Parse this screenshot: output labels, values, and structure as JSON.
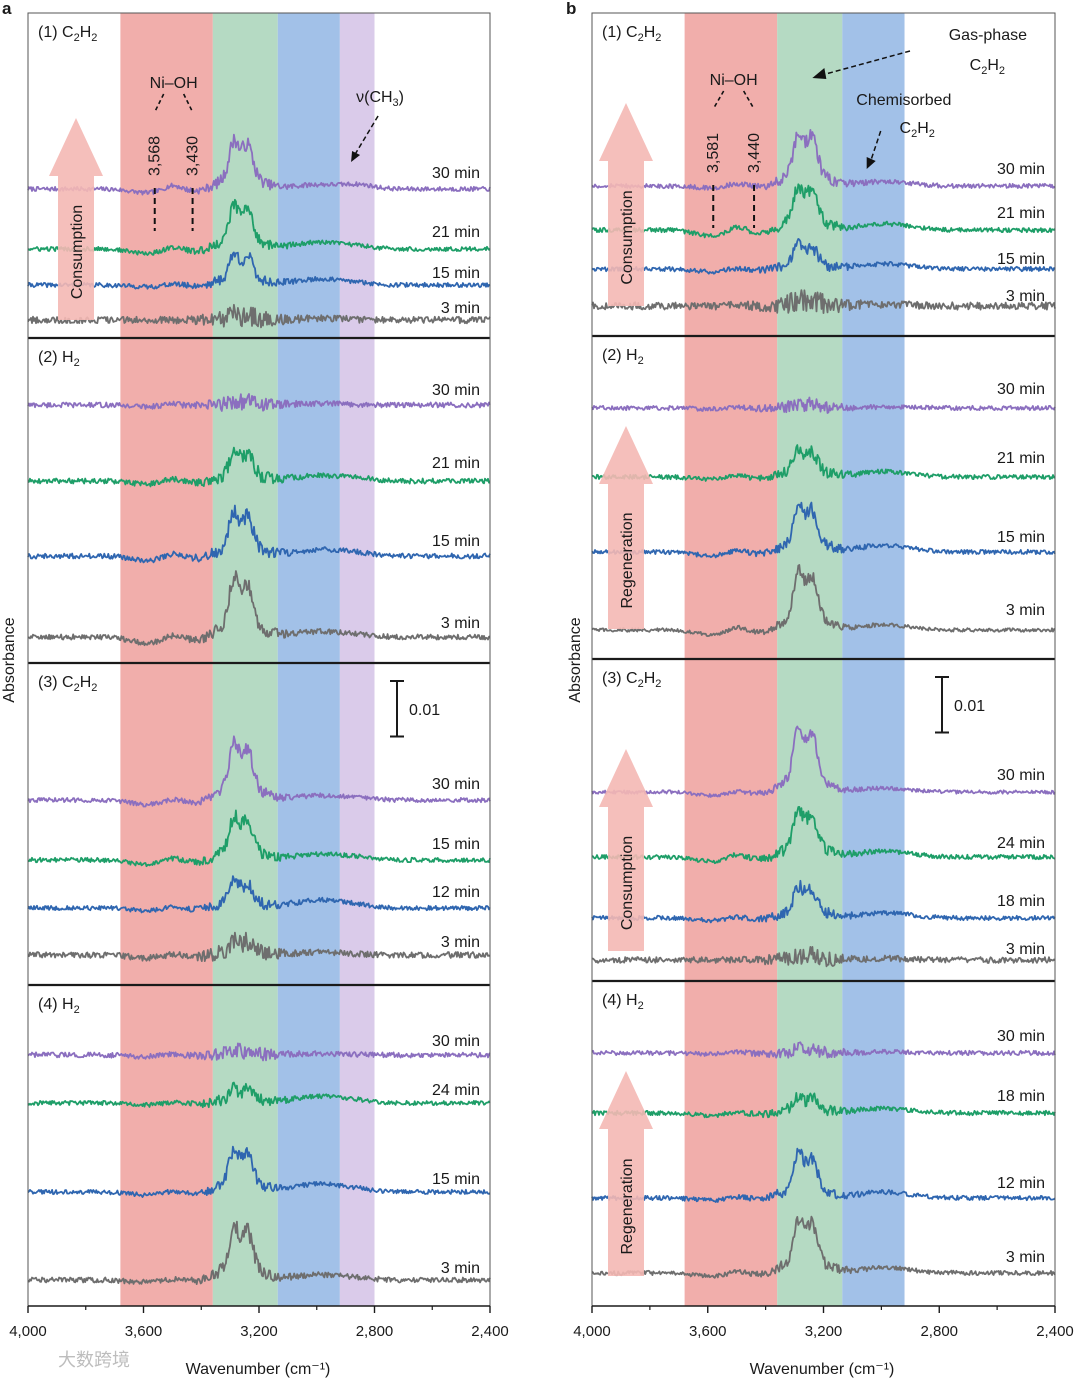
{
  "chart_data": [
    {
      "panel": "a",
      "type": "line",
      "xlabel": "Wavenumber (cm⁻¹)",
      "ylabel": "Absorbance",
      "xlim": [
        4000,
        2400
      ],
      "x_ticks": [
        4000,
        3600,
        3200,
        2800,
        2400
      ],
      "x_tick_labels": [
        "4,000",
        "3,600",
        "3,200",
        "2,800",
        "2,400"
      ],
      "bands": [
        {
          "name": "Ni-OH region",
          "from": 3680,
          "to": 3360,
          "color": "#eea09c"
        },
        {
          "name": "gas-phase C2H2",
          "from": 3360,
          "to": 3135,
          "color": "#a8d4b8"
        },
        {
          "name": "chemisorbed C2H2",
          "from": 3135,
          "to": 2920,
          "color": "#92b6e4"
        },
        {
          "name": "v(CH3)",
          "from": 2920,
          "to": 2800,
          "color": "#d4c2e6"
        }
      ],
      "sections": [
        {
          "label_main": "(1) C",
          "label_sub": "2",
          "label_tail": "H",
          "label_sub2": "2",
          "label_end": "",
          "arrow": "Consumption",
          "traces": [
            {
              "time": "30 min",
              "color": "#8b6fbf",
              "baseline": 0.011,
              "oh": [
                0.0012,
                -0.001
              ],
              "gas": 0.0095,
              "chem": 0.0012,
              "ch3": 0.0009,
              "noise": 0.0006
            },
            {
              "time": "21 min",
              "color": "#1e9e68",
              "baseline": 0.0065,
              "oh": [
                0.0008,
                -0.0012
              ],
              "gas": 0.0085,
              "chem": 0.0018,
              "ch3": 0.0005,
              "noise": 0.0006
            },
            {
              "time": "15 min",
              "color": "#2f66b0",
              "baseline": 0.0035,
              "oh": [
                0.0004,
                -0.0005
              ],
              "gas": 0.006,
              "chem": 0.0016,
              "ch3": 0.0003,
              "noise": 0.0006
            },
            {
              "time": "3 min",
              "color": "#6e6e6e",
              "baseline": 0.0,
              "oh": [
                0.0,
                0.0
              ],
              "gas": 0.001,
              "chem": 0.0004,
              "ch3": 0.0,
              "noise": 0.0009
            }
          ],
          "annotations": {
            "ni_oh": "Ni–OH",
            "peak1": "3,568",
            "peak2": "3,430",
            "ch3_pre": "ν(CH",
            "ch3_sub": "3",
            "ch3_post": ")"
          }
        },
        {
          "label_main": "(2) H",
          "label_sub": "2",
          "label_tail": "",
          "label_sub2": "",
          "label_end": "",
          "arrow": "",
          "traces": [
            {
              "time": "30 min",
              "color": "#8b6fbf",
              "baseline": 0.0245,
              "oh": [
                0.0004,
                -0.0004
              ],
              "gas": 0.0008,
              "chem": 0.0004,
              "ch3": 0.0,
              "noise": 0.0007
            },
            {
              "time": "21 min",
              "color": "#1e9e68",
              "baseline": 0.0165,
              "oh": [
                0.0008,
                -0.0008
              ],
              "gas": 0.0055,
              "chem": 0.0015,
              "ch3": 0.0005,
              "noise": 0.0007
            },
            {
              "time": "15 min",
              "color": "#2f66b0",
              "baseline": 0.0085,
              "oh": [
                0.0009,
                -0.0012
              ],
              "gas": 0.0085,
              "chem": 0.0018,
              "ch3": 0.0005,
              "noise": 0.0007
            },
            {
              "time": "3 min",
              "color": "#6e6e6e",
              "baseline": 0.0,
              "oh": [
                0.0008,
                -0.0016
              ],
              "gas": 0.0115,
              "chem": 0.0015,
              "ch3": 0.0004,
              "noise": 0.0007
            }
          ]
        },
        {
          "label_main": "(3) C",
          "label_sub": "2",
          "label_tail": "H",
          "label_sub2": "2",
          "label_end": "",
          "arrow": "",
          "scale_bar": "0.01",
          "traces": [
            {
              "time": "30 min",
              "color": "#8b6fbf",
              "baseline": 0.0155,
              "oh": [
                0.0004,
                -0.0012
              ],
              "gas": 0.011,
              "chem": 0.0012,
              "ch3": 0.0004,
              "noise": 0.0006
            },
            {
              "time": "15 min",
              "color": "#1e9e68",
              "baseline": 0.0095,
              "oh": [
                0.0008,
                -0.0012
              ],
              "gas": 0.0085,
              "chem": 0.0016,
              "ch3": 0.0005,
              "noise": 0.0006
            },
            {
              "time": "12 min",
              "color": "#2f66b0",
              "baseline": 0.0047,
              "oh": [
                0.0005,
                -0.0007
              ],
              "gas": 0.005,
              "chem": 0.0022,
              "ch3": 0.0004,
              "noise": 0.0006
            },
            {
              "time": "3 min",
              "color": "#6e6e6e",
              "baseline": 0.0,
              "oh": [
                0.0004,
                -0.0008
              ],
              "gas": 0.0028,
              "chem": 0.0008,
              "ch3": 0.0,
              "noise": 0.0008
            }
          ]
        },
        {
          "label_main": "(4) H",
          "label_sub": "2",
          "label_tail": "",
          "label_sub2": "",
          "label_end": "",
          "arrow": "",
          "traces": [
            {
              "time": "30 min",
              "color": "#8b6fbf",
              "baseline": 0.0225,
              "oh": [
                0.0005,
                -0.0004
              ],
              "gas": 0.0008,
              "chem": 0.0004,
              "ch3": 0.0,
              "noise": 0.0007
            },
            {
              "time": "24 min",
              "color": "#1e9e68",
              "baseline": 0.0175,
              "oh": [
                0.0004,
                -0.0005
              ],
              "gas": 0.0028,
              "chem": 0.0018,
              "ch3": 0.0004,
              "noise": 0.0006
            },
            {
              "time": "15 min",
              "color": "#2f66b0",
              "baseline": 0.0085,
              "oh": [
                0.0004,
                -0.0008
              ],
              "gas": 0.0085,
              "chem": 0.0022,
              "ch3": 0.0004,
              "noise": 0.0006
            },
            {
              "time": "3 min",
              "color": "#6e6e6e",
              "baseline": 0.0,
              "oh": [
                0.0004,
                -0.0006
              ],
              "gas": 0.0105,
              "chem": 0.0014,
              "ch3": 0.0003,
              "noise": 0.0007
            }
          ]
        }
      ]
    },
    {
      "panel": "b",
      "type": "line",
      "xlabel": "Wavenumber (cm⁻¹)",
      "ylabel": "Absorbance",
      "xlim": [
        4000,
        2400
      ],
      "x_ticks": [
        4000,
        3600,
        3200,
        2800,
        2400
      ],
      "x_tick_labels": [
        "4,000",
        "3,600",
        "3,200",
        "2,800",
        "2,400"
      ],
      "bands": [
        {
          "name": "Ni-OH region",
          "from": 3680,
          "to": 3360,
          "color": "#eea09c"
        },
        {
          "name": "gas-phase C2H2",
          "from": 3360,
          "to": 3135,
          "color": "#a8d4b8"
        },
        {
          "name": "chemisorbed C2H2",
          "from": 3135,
          "to": 2920,
          "color": "#92b6e4"
        }
      ],
      "sections": [
        {
          "label_main": "(1) C",
          "label_sub": "2",
          "label_tail": "H",
          "label_sub2": "2",
          "label_end": "",
          "arrow": "Consumption",
          "traces": [
            {
              "time": "30 min",
              "color": "#8b6fbf",
              "baseline": 0.011,
              "oh": [
                0.0008,
                -0.0005
              ],
              "gas": 0.0105,
              "chem": 0.0012,
              "ch3": 0.0,
              "noise": 0.0006
            },
            {
              "time": "21 min",
              "color": "#1e9e68",
              "baseline": 0.007,
              "oh": [
                0.0012,
                -0.0015
              ],
              "gas": 0.0085,
              "chem": 0.0017,
              "ch3": 0.0,
              "noise": 0.0006
            },
            {
              "time": "15 min",
              "color": "#2f66b0",
              "baseline": 0.0035,
              "oh": [
                0.0004,
                -0.0007
              ],
              "gas": 0.0045,
              "chem": 0.0014,
              "ch3": 0.0,
              "noise": 0.0006
            },
            {
              "time": "3 min",
              "color": "#6e6e6e",
              "baseline": 0.0,
              "oh": [
                0.0002,
                0.0
              ],
              "gas": 0.0012,
              "chem": 0.0005,
              "ch3": 0.0,
              "noise": 0.001
            }
          ],
          "annotations": {
            "ni_oh": "Ni–OH",
            "peak1": "3,581",
            "peak2": "3,440",
            "gas_line1": "Gas-phase",
            "gas_line2_pre": "C",
            "gas_line2_sub": "2",
            "gas_line2_mid": "H",
            "gas_line2_sub2": "2",
            "chem_line1": "Chemisorbed",
            "chem_line2_pre": "C",
            "chem_line2_sub": "2",
            "chem_line2_mid": "H",
            "chem_line2_sub2": "2"
          }
        },
        {
          "label_main": "(2) H",
          "label_sub": "2",
          "label_tail": "",
          "label_sub2": "",
          "label_end": "",
          "arrow": "Regeneration",
          "traces": [
            {
              "time": "30 min",
              "color": "#8b6fbf",
              "baseline": 0.0225,
              "oh": [
                0.0003,
                -0.0003
              ],
              "gas": 0.0008,
              "chem": 0.0003,
              "ch3": 0.0,
              "noise": 0.0006
            },
            {
              "time": "21 min",
              "color": "#1e9e68",
              "baseline": 0.016,
              "oh": [
                0.0004,
                -0.0005
              ],
              "gas": 0.0055,
              "chem": 0.0015,
              "ch3": 0.0,
              "noise": 0.0006
            },
            {
              "time": "15 min",
              "color": "#2f66b0",
              "baseline": 0.0075,
              "oh": [
                0.0007,
                -0.001
              ],
              "gas": 0.009,
              "chem": 0.0018,
              "ch3": 0.0,
              "noise": 0.0006
            },
            {
              "time": "3 min",
              "color": "#6e6e6e",
              "baseline": 0.0,
              "oh": [
                0.001,
                -0.0012
              ],
              "gas": 0.0115,
              "chem": 0.0014,
              "ch3": 0.0,
              "noise": 0.0005
            }
          ]
        },
        {
          "label_main": "(3) C",
          "label_sub": "2",
          "label_tail": "H",
          "label_sub2": "2",
          "label_end": "",
          "arrow": "Consumption",
          "scale_bar": "0.01",
          "traces": [
            {
              "time": "30 min",
              "color": "#8b6fbf",
              "baseline": 0.0165,
              "oh": [
                0.0004,
                -0.0009
              ],
              "gas": 0.0125,
              "chem": 0.001,
              "ch3": 0.0,
              "noise": 0.0005
            },
            {
              "time": "24 min",
              "color": "#1e9e68",
              "baseline": 0.0105,
              "oh": [
                0.001,
                -0.0012
              ],
              "gas": 0.009,
              "chem": 0.0016,
              "ch3": 0.0,
              "noise": 0.0006
            },
            {
              "time": "18 min",
              "color": "#2f66b0",
              "baseline": 0.0045,
              "oh": [
                0.0004,
                -0.0006
              ],
              "gas": 0.006,
              "chem": 0.0014,
              "ch3": 0.0,
              "noise": 0.0006
            },
            {
              "time": "3 min",
              "color": "#6e6e6e",
              "baseline": 0.0,
              "oh": [
                0.0001,
                0.0
              ],
              "gas": 0.001,
              "chem": 0.0004,
              "ch3": 0.0,
              "noise": 0.0008
            }
          ]
        },
        {
          "label_main": "(4) H",
          "label_sub": "2",
          "label_tail": "",
          "label_sub2": "",
          "label_end": "",
          "arrow": "Regeneration",
          "traces": [
            {
              "time": "30 min",
              "color": "#8b6fbf",
              "baseline": 0.0225,
              "oh": [
                0.0003,
                -0.0003
              ],
              "gas": 0.0008,
              "chem": 0.0003,
              "ch3": 0.0,
              "noise": 0.0006
            },
            {
              "time": "18 min",
              "color": "#1e9e68",
              "baseline": 0.0165,
              "oh": [
                0.0004,
                -0.0006
              ],
              "gas": 0.003,
              "chem": 0.0012,
              "ch3": 0.0,
              "noise": 0.0006
            },
            {
              "time": "12 min",
              "color": "#2f66b0",
              "baseline": 0.008,
              "oh": [
                0.0004,
                -0.0006
              ],
              "gas": 0.0085,
              "chem": 0.0016,
              "ch3": 0.0,
              "noise": 0.0006
            },
            {
              "time": "3 min",
              "color": "#6e6e6e",
              "baseline": 0.0,
              "oh": [
                0.0006,
                -0.0008
              ],
              "gas": 0.0105,
              "chem": 0.0014,
              "ch3": 0.0,
              "noise": 0.0006
            }
          ]
        }
      ]
    }
  ],
  "watermark": "大数跨境",
  "colors": {
    "axis": "#1a1a1a",
    "arrow_fill": "#f4b8b4"
  }
}
